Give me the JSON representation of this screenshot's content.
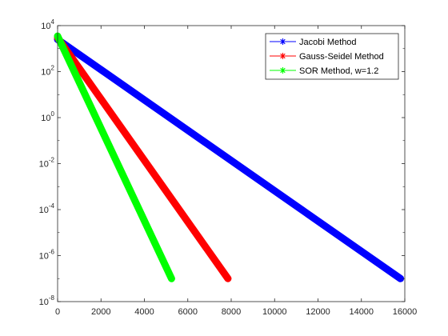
{
  "chart_data": {
    "type": "line",
    "title": "",
    "xlabel": "",
    "ylabel": "",
    "xlim": [
      0,
      16000
    ],
    "ylim": [
      1e-08,
      10000
    ],
    "yscale": "log",
    "x_ticks": [
      0,
      2000,
      4000,
      6000,
      8000,
      10000,
      12000,
      14000,
      16000
    ],
    "x_tick_labels": [
      "0",
      "2000",
      "4000",
      "6000",
      "8000",
      "10000",
      "12000",
      "14000",
      "16000"
    ],
    "y_ticks": [
      1e-08,
      1e-06,
      0.0001,
      0.01,
      1,
      100,
      10000
    ],
    "y_tick_labels": [
      {
        "base": "10",
        "exp": "-8"
      },
      {
        "base": "10",
        "exp": "-6"
      },
      {
        "base": "10",
        "exp": "-4"
      },
      {
        "base": "10",
        "exp": "-2"
      },
      {
        "base": "10",
        "exp": "0"
      },
      {
        "base": "10",
        "exp": "2"
      },
      {
        "base": "10",
        "exp": "4"
      }
    ],
    "grid": false,
    "legend_position": "top-right",
    "series": [
      {
        "name": "Jacobi Method",
        "color": "#0000ff",
        "marker": "asterisk",
        "x_start": 0,
        "x_end": 15800,
        "y_start": 2500,
        "y_end": 1e-07
      },
      {
        "name": "Gauss-Seidel Method",
        "color": "#ff0000",
        "marker": "asterisk",
        "x_start": 0,
        "x_end": 7850,
        "y_start": 3000,
        "y_end": 1e-07
      },
      {
        "name": "SOR Method, w=1.2",
        "color": "#00ff00",
        "marker": "asterisk",
        "x_start": 0,
        "x_end": 5250,
        "y_start": 3500,
        "y_end": 1e-07
      }
    ]
  }
}
